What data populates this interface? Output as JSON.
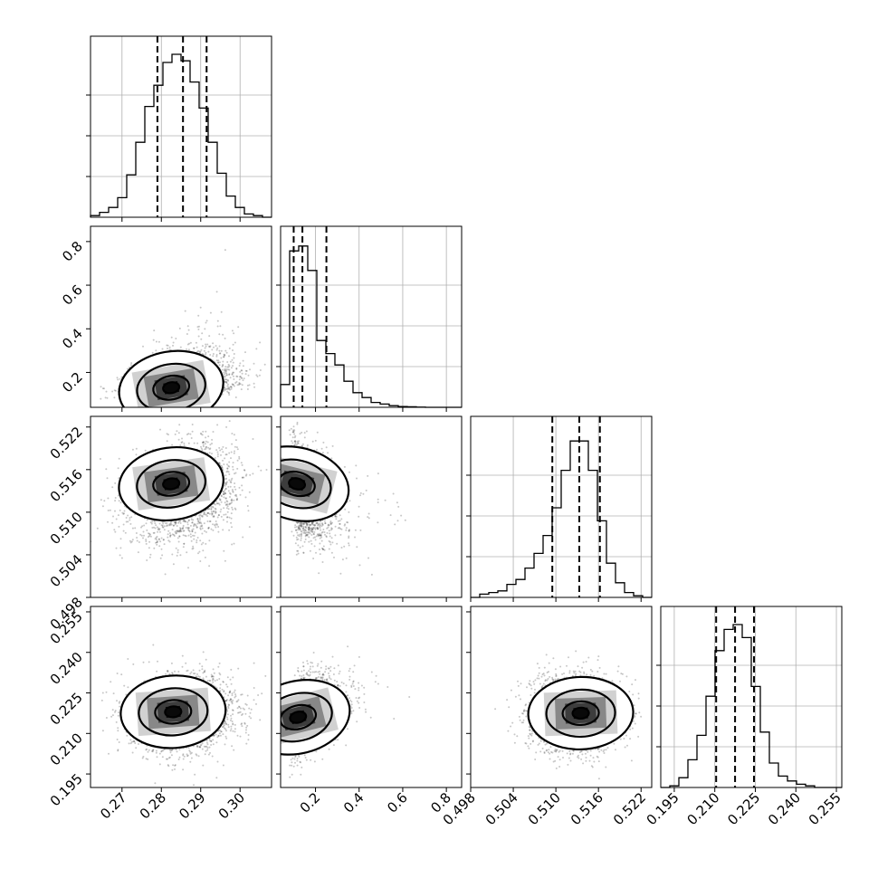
{
  "chart_data": {
    "type": "scatter",
    "kind": "corner-plot",
    "title": "",
    "parameters": [
      {
        "range": [
          0.262,
          0.308
        ],
        "ticks": [
          0.27,
          0.28,
          0.29,
          0.3
        ],
        "tick_labels": [
          "0.27",
          "0.28",
          "0.29",
          "0.30"
        ],
        "quantiles": [
          0.279,
          0.2855,
          0.2915
        ],
        "mean": 0.2855,
        "sd": 0.0065
      },
      {
        "range": [
          0.04,
          0.87
        ],
        "ticks": [
          0.2,
          0.4,
          0.6,
          0.8
        ],
        "tick_labels": [
          "0.2",
          "0.4",
          "0.6",
          "0.8"
        ],
        "quantiles": [
          0.1,
          0.14,
          0.25
        ],
        "mean": 0.16,
        "sd": 0.1
      },
      {
        "range": [
          0.498,
          0.5235
        ],
        "ticks": [
          0.498,
          0.504,
          0.51,
          0.516,
          0.522
        ],
        "tick_labels": [
          "0.498",
          "0.504",
          "0.510",
          "0.516",
          "0.522"
        ],
        "quantiles": [
          0.5095,
          0.5133,
          0.5162
        ],
        "mean": 0.5128,
        "sd": 0.0032
      },
      {
        "range": [
          0.19,
          0.257
        ],
        "ticks": [
          0.195,
          0.21,
          0.225,
          0.24,
          0.255
        ],
        "tick_labels": [
          "0.195",
          "0.210",
          "0.225",
          "0.240",
          "0.255"
        ],
        "quantiles": [
          0.2105,
          0.2175,
          0.2245
        ],
        "mean": 0.2175,
        "sd": 0.0068
      }
    ],
    "histograms": [
      {
        "param": 0,
        "counts": [
          0.01,
          0.03,
          0.06,
          0.12,
          0.26,
          0.46,
          0.68,
          0.81,
          0.95,
          1.0,
          0.96,
          0.83,
          0.67,
          0.46,
          0.27,
          0.13,
          0.06,
          0.02,
          0.01,
          0.0
        ]
      },
      {
        "param": 1,
        "counts": [
          0.14,
          0.96,
          0.99,
          0.84,
          0.41,
          0.33,
          0.26,
          0.16,
          0.09,
          0.06,
          0.03,
          0.02,
          0.01,
          0.005,
          0.003,
          0.001,
          0.0,
          0.0,
          0.0,
          0.0
        ]
      },
      {
        "param": 2,
        "counts": [
          0.0,
          0.02,
          0.03,
          0.04,
          0.08,
          0.11,
          0.18,
          0.27,
          0.38,
          0.55,
          0.78,
          0.96,
          0.96,
          0.78,
          0.47,
          0.21,
          0.09,
          0.03,
          0.01,
          0.0
        ]
      },
      {
        "param": 3,
        "counts": [
          0.0,
          0.01,
          0.06,
          0.17,
          0.32,
          0.56,
          0.84,
          0.97,
          1.0,
          0.92,
          0.62,
          0.34,
          0.15,
          0.07,
          0.04,
          0.02,
          0.01,
          0.0,
          0.0,
          0.0
        ]
      }
    ],
    "pairs": [
      {
        "x": 0,
        "y": 1,
        "peak": [
          0.2825,
          0.13
        ]
      },
      {
        "x": 0,
        "y": 2,
        "peak": [
          0.2825,
          0.514
        ]
      },
      {
        "x": 1,
        "y": 2,
        "peak": [
          0.115,
          0.514
        ]
      },
      {
        "x": 0,
        "y": 3,
        "peak": [
          0.283,
          0.218
        ]
      },
      {
        "x": 1,
        "y": 3,
        "peak": [
          0.12,
          0.216
        ]
      },
      {
        "x": 2,
        "y": 3,
        "peak": [
          0.5135,
          0.2175
        ]
      }
    ]
  }
}
